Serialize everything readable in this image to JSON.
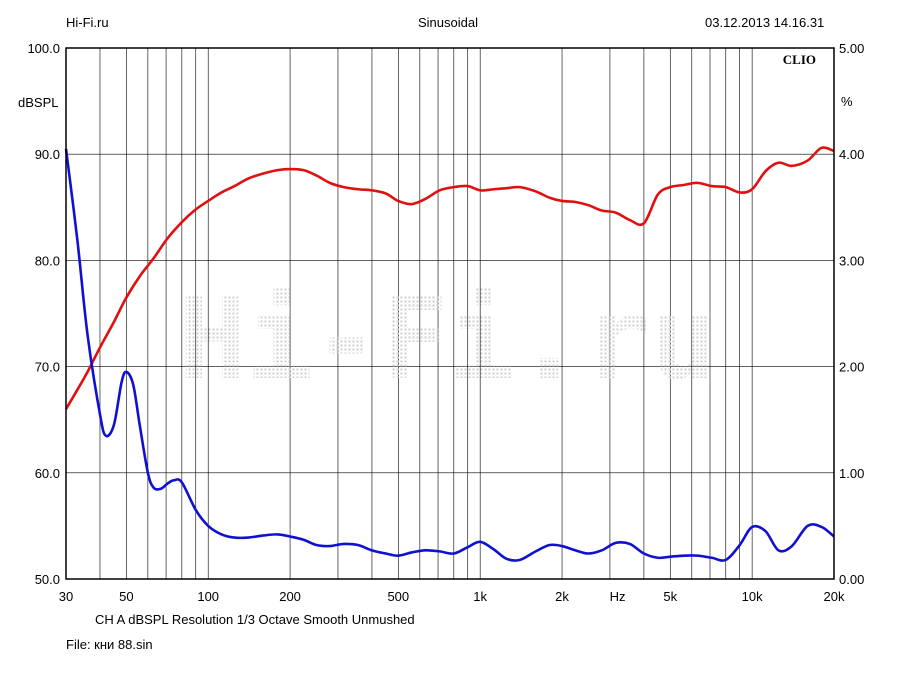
{
  "header": {
    "left": "Hi-Fi.ru",
    "center": "Sinusoidal",
    "right": "03.12.2013 14.16.31"
  },
  "footer": {
    "settings": "CH A   dBSPL   Resolution 1/3 Octave   Smooth Unmushed",
    "file": "File: кни 88.sin"
  },
  "chart_data": {
    "type": "line",
    "brand": "CLIO",
    "watermark": "Hi-Fi.ru",
    "xscale": "log",
    "xlim": [
      30,
      20000
    ],
    "x_ticks": [
      {
        "v": 30,
        "label": "30"
      },
      {
        "v": 50,
        "label": "50"
      },
      {
        "v": 100,
        "label": "100"
      },
      {
        "v": 200,
        "label": "200"
      },
      {
        "v": 500,
        "label": "500"
      },
      {
        "v": 1000,
        "label": "1k"
      },
      {
        "v": 2000,
        "label": "2k"
      },
      {
        "v": 3200,
        "label": "Hz"
      },
      {
        "v": 5000,
        "label": "5k"
      },
      {
        "v": 10000,
        "label": "10k"
      },
      {
        "v": 20000,
        "label": "20k"
      }
    ],
    "left_axis": {
      "label": "dBSPL",
      "ylim": [
        50,
        100
      ],
      "ticks": [
        "50.0",
        "60.0",
        "70.0",
        "80.0",
        "90.0",
        "100.0"
      ]
    },
    "right_axis": {
      "label": "%",
      "ylim": [
        0,
        5
      ],
      "ticks": [
        "0.00",
        "1.00",
        "2.00",
        "3.00",
        "4.00",
        "5.00"
      ]
    },
    "grid": true,
    "colors": {
      "spl": "#e01010",
      "distortion": "#1010d0",
      "grid": "#000000"
    },
    "series": [
      {
        "axis": "left",
        "color": "#e01010",
        "points": [
          [
            30,
            66.0
          ],
          [
            33,
            67.8
          ],
          [
            36,
            69.5
          ],
          [
            40,
            71.8
          ],
          [
            45,
            74.2
          ],
          [
            50,
            76.5
          ],
          [
            56,
            78.5
          ],
          [
            63,
            80.2
          ],
          [
            71,
            82.1
          ],
          [
            80,
            83.6
          ],
          [
            90,
            84.8
          ],
          [
            100,
            85.6
          ],
          [
            112,
            86.4
          ],
          [
            125,
            87.0
          ],
          [
            140,
            87.7
          ],
          [
            160,
            88.2
          ],
          [
            180,
            88.5
          ],
          [
            200,
            88.6
          ],
          [
            224,
            88.5
          ],
          [
            250,
            88.0
          ],
          [
            280,
            87.3
          ],
          [
            315,
            86.9
          ],
          [
            355,
            86.7
          ],
          [
            400,
            86.6
          ],
          [
            450,
            86.3
          ],
          [
            500,
            85.6
          ],
          [
            560,
            85.3
          ],
          [
            630,
            85.8
          ],
          [
            710,
            86.6
          ],
          [
            800,
            86.9
          ],
          [
            900,
            87.0
          ],
          [
            1000,
            86.6
          ],
          [
            1120,
            86.7
          ],
          [
            1250,
            86.8
          ],
          [
            1400,
            86.9
          ],
          [
            1600,
            86.5
          ],
          [
            1800,
            85.9
          ],
          [
            2000,
            85.6
          ],
          [
            2240,
            85.5
          ],
          [
            2500,
            85.2
          ],
          [
            2800,
            84.7
          ],
          [
            3150,
            84.5
          ],
          [
            3550,
            83.8
          ],
          [
            4000,
            83.5
          ],
          [
            4500,
            86.2
          ],
          [
            5000,
            86.9
          ],
          [
            5600,
            87.1
          ],
          [
            6300,
            87.3
          ],
          [
            7100,
            87.0
          ],
          [
            8000,
            86.9
          ],
          [
            9000,
            86.4
          ],
          [
            10000,
            86.7
          ],
          [
            11200,
            88.4
          ],
          [
            12500,
            89.2
          ],
          [
            14000,
            88.9
          ],
          [
            16000,
            89.4
          ],
          [
            18000,
            90.6
          ],
          [
            20000,
            90.3
          ]
        ]
      },
      {
        "axis": "right",
        "color": "#1010d0",
        "points": [
          [
            30,
            4.05
          ],
          [
            33,
            3.2
          ],
          [
            36,
            2.3
          ],
          [
            40,
            1.55
          ],
          [
            42,
            1.35
          ],
          [
            45,
            1.45
          ],
          [
            48,
            1.85
          ],
          [
            50,
            1.95
          ],
          [
            53,
            1.83
          ],
          [
            56,
            1.45
          ],
          [
            60,
            1.0
          ],
          [
            63,
            0.86
          ],
          [
            67,
            0.85
          ],
          [
            71,
            0.9
          ],
          [
            75,
            0.93
          ],
          [
            80,
            0.91
          ],
          [
            90,
            0.65
          ],
          [
            100,
            0.5
          ],
          [
            112,
            0.42
          ],
          [
            125,
            0.39
          ],
          [
            140,
            0.39
          ],
          [
            160,
            0.41
          ],
          [
            180,
            0.42
          ],
          [
            200,
            0.4
          ],
          [
            224,
            0.37
          ],
          [
            250,
            0.32
          ],
          [
            280,
            0.31
          ],
          [
            315,
            0.33
          ],
          [
            355,
            0.32
          ],
          [
            400,
            0.27
          ],
          [
            450,
            0.24
          ],
          [
            500,
            0.22
          ],
          [
            560,
            0.25
          ],
          [
            630,
            0.27
          ],
          [
            710,
            0.26
          ],
          [
            800,
            0.24
          ],
          [
            900,
            0.3
          ],
          [
            1000,
            0.35
          ],
          [
            1120,
            0.28
          ],
          [
            1250,
            0.19
          ],
          [
            1400,
            0.18
          ],
          [
            1600,
            0.26
          ],
          [
            1800,
            0.32
          ],
          [
            2000,
            0.31
          ],
          [
            2240,
            0.27
          ],
          [
            2500,
            0.24
          ],
          [
            2800,
            0.27
          ],
          [
            3150,
            0.34
          ],
          [
            3550,
            0.33
          ],
          [
            4000,
            0.24
          ],
          [
            4500,
            0.2
          ],
          [
            5000,
            0.21
          ],
          [
            5600,
            0.22
          ],
          [
            6300,
            0.22
          ],
          [
            7100,
            0.2
          ],
          [
            8000,
            0.18
          ],
          [
            9000,
            0.32
          ],
          [
            10000,
            0.49
          ],
          [
            11200,
            0.45
          ],
          [
            12500,
            0.27
          ],
          [
            14000,
            0.31
          ],
          [
            16000,
            0.5
          ],
          [
            18000,
            0.49
          ],
          [
            20000,
            0.4
          ]
        ]
      }
    ]
  }
}
